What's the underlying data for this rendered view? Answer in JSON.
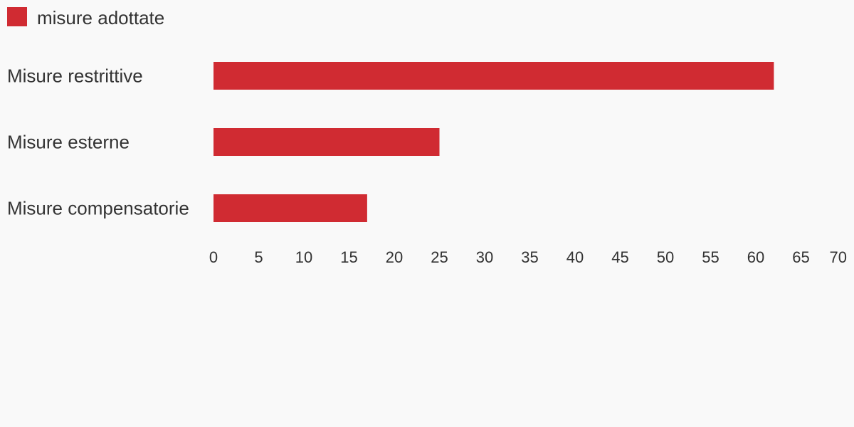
{
  "chart_data": {
    "type": "bar",
    "orientation": "horizontal",
    "categories": [
      "Misure restrittive",
      "Misure esterne",
      "Misure compensatorie"
    ],
    "series": [
      {
        "name": "misure adottate",
        "color": "#d02b32",
        "values": [
          62,
          25,
          17
        ]
      }
    ],
    "xlim": [
      0,
      70
    ],
    "xticks": [
      0,
      5,
      10,
      15,
      20,
      25,
      30,
      35,
      40,
      45,
      50,
      55,
      60,
      65,
      70
    ],
    "grid": false,
    "legend": "top-left"
  }
}
